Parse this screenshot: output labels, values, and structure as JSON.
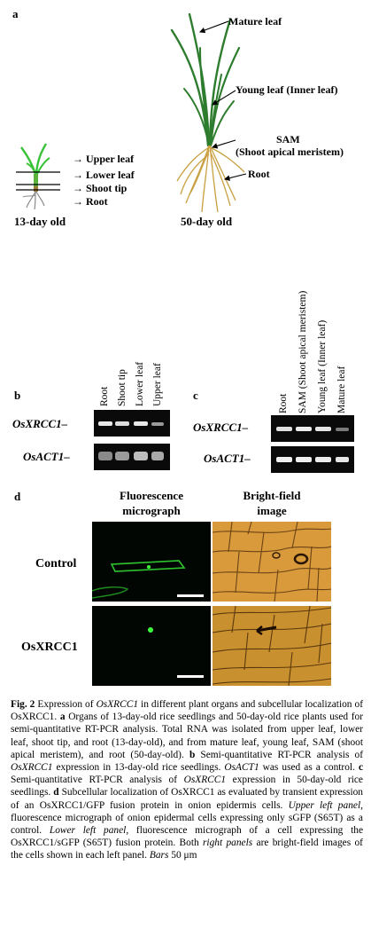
{
  "panel_a": {
    "letter": "a",
    "seedling_labels": [
      "Upper leaf",
      "Lower leaf",
      "Shoot tip",
      "Root"
    ],
    "seedling_age": "13-day old",
    "plant_labels": {
      "mature": "Mature leaf",
      "young": "Young leaf (Inner leaf)",
      "sam_1": "SAM",
      "sam_2": "(Shoot apical meristem)",
      "root": "Root"
    },
    "plant_age": "50-day old"
  },
  "panel_b": {
    "letter": "b",
    "lanes": [
      "Root",
      "Shoot tip",
      "Lower leaf",
      "Upper leaf"
    ],
    "genes": [
      "OsXRCC1",
      "OsACT1"
    ]
  },
  "panel_c": {
    "letter": "c",
    "lanes": [
      "Root",
      "SAM (Shoot apical meristem)",
      "Young leaf (Inner leaf)",
      "Mature leaf"
    ],
    "genes": [
      "OsXRCC1",
      "OsACT1"
    ]
  },
  "panel_d": {
    "letter": "d",
    "col1_line1": "Fluorescence",
    "col1_line2": "micrograph",
    "col2_line1": "Bright-field",
    "col2_line2": "image",
    "row1": "Control",
    "row2": "OsXRCC1"
  },
  "caption": {
    "fig": "Fig. 2",
    "t1": " Expression of ",
    "g1": "OsXRCC1",
    "t2": " in different plant organs and subcellular localization of OsXRCC1. ",
    "la": "a",
    "t3": " Organs of 13-day-old rice seedlings and 50-day-old rice plants used for semi-quantitative RT-PCR analysis. Total RNA was isolated from upper leaf, lower leaf, shoot tip, and root (13-day-old), and from mature leaf, young leaf, SAM (shoot apical meristem), and root (50-day-old). ",
    "lb": "b",
    "t4": " Semi-quantitative RT-PCR analysis of ",
    "g2": "OsXRCC1",
    "t5": " expression in 13-day-old rice seedlings. ",
    "g3": "OsACT1",
    "t6": " was used as a control. ",
    "lc": "c",
    "t7": " Semi-quantitative RT-PCR analysis of ",
    "g4": "OsXRCC1",
    "t8": " expression in 50-day-old rice seedlings. ",
    "ld": "d",
    "t9": " Subcellular localization of OsXRCC1 as evaluated by transient expression of an OsXRCC1/GFP fusion protein in onion epidermis cells. ",
    "i1": "Upper left panel",
    "t10": ", fluorescence micrograph of onion epidermal cells expressing only sGFP (S65T) as a control. ",
    "i2": "Lower left panel",
    "t11": ", fluorescence micrograph of a cell expressing the OsXRCC1/sGFP (S65T) fusion protein. Both ",
    "i3": "right panels",
    "t12": " are bright-field images of the cells shown in each left panel. ",
    "i4": "Bars",
    "t13": " 50 μm"
  }
}
